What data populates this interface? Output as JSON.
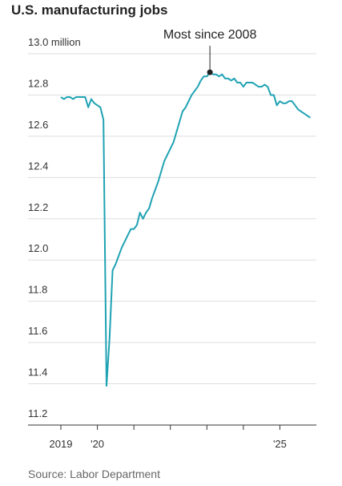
{
  "chart_data": {
    "type": "line",
    "title": "U.S. manufacturing jobs",
    "annotation": "Most since 2008",
    "source": "Source: Labor Department",
    "x": [
      2019,
      2019.0833,
      2019.1667,
      2019.25,
      2019.3333,
      2019.4167,
      2019.5,
      2019.5833,
      2019.6667,
      2019.75,
      2019.8333,
      2019.9167,
      2020,
      2020.0833,
      2020.1667,
      2020.25,
      2020.3333,
      2020.4167,
      2020.5,
      2020.5833,
      2020.6667,
      2020.75,
      2020.8333,
      2020.9167,
      2021,
      2021.0833,
      2021.1667,
      2021.25,
      2021.3333,
      2021.4167,
      2021.5,
      2021.5833,
      2021.6667,
      2021.75,
      2021.8333,
      2021.9167,
      2022,
      2022.0833,
      2022.1667,
      2022.25,
      2022.3333,
      2022.4167,
      2022.5,
      2022.5833,
      2022.6667,
      2022.75,
      2022.8333,
      2022.9167,
      2023,
      2023.0833,
      2023.1667,
      2023.25,
      2023.3333,
      2023.4167,
      2023.5,
      2023.5833,
      2023.6667,
      2023.75,
      2023.8333,
      2023.9167,
      2024,
      2024.0833,
      2024.1667,
      2024.25,
      2024.3333,
      2024.4167,
      2024.5,
      2024.5833,
      2024.6667,
      2024.75,
      2024.8333,
      2024.9167,
      2025,
      2025.0833,
      2025.1667,
      2025.25,
      2025.3333,
      2025.4167,
      2025.5,
      2025.5833,
      2025.6667,
      2025.75,
      2025.8333
    ],
    "series": [
      {
        "color": "#1fa2b3",
        "values": [
          12.79,
          12.78,
          12.79,
          12.79,
          12.78,
          12.79,
          12.79,
          12.79,
          12.79,
          12.74,
          12.78,
          12.76,
          12.75,
          12.74,
          12.68,
          11.39,
          11.62,
          11.95,
          11.98,
          12.02,
          12.06,
          12.09,
          12.12,
          12.15,
          12.15,
          12.17,
          12.23,
          12.2,
          12.23,
          12.25,
          12.3,
          12.34,
          12.38,
          12.43,
          12.48,
          12.51,
          12.54,
          12.57,
          12.62,
          12.67,
          12.72,
          12.74,
          12.77,
          12.8,
          12.82,
          12.84,
          12.87,
          12.89,
          12.89,
          12.91,
          12.9,
          12.9,
          12.89,
          12.9,
          12.88,
          12.88,
          12.87,
          12.88,
          12.86,
          12.86,
          12.84,
          12.86,
          12.86,
          12.86,
          12.85,
          12.84,
          12.84,
          12.85,
          12.84,
          12.8,
          12.8,
          12.75,
          12.77,
          12.76,
          12.76,
          12.77,
          12.77,
          12.75,
          12.73,
          12.72,
          12.71,
          12.7,
          12.69
        ]
      }
    ],
    "xlim": [
      2018.1,
      2026.0
    ],
    "xticks": [
      {
        "value": 2019,
        "label": "2019"
      },
      {
        "value": 2020,
        "label": "'20"
      },
      {
        "value": 2021,
        "label": null
      },
      {
        "value": 2022,
        "label": null
      },
      {
        "value": 2023,
        "label": null
      },
      {
        "value": 2024,
        "label": null
      },
      {
        "value": 2025,
        "label": "'25"
      }
    ],
    "ylim": [
      11.2,
      13.0
    ],
    "yticks": [
      11.2,
      11.4,
      11.6,
      11.8,
      {
        "value": 12,
        "label": "12.0"
      },
      12.2,
      12.4,
      12.6,
      12.8,
      {
        "value": 13,
        "label": "13.0 million"
      }
    ],
    "grid": true
  }
}
